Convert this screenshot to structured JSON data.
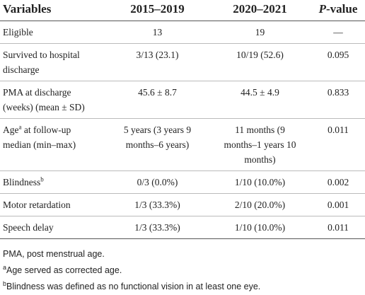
{
  "table": {
    "header": [
      "Variables",
      "2015–2019",
      "2020–2021",
      {
        "italic": "P",
        "text": "-value"
      }
    ],
    "rows": [
      {
        "label": [
          [
            "Eligible"
          ]
        ],
        "cells": [
          [
            "13"
          ],
          [
            "19"
          ],
          [
            "—"
          ]
        ]
      },
      {
        "label": [
          [
            "Survived to hospital"
          ],
          [
            "discharge"
          ]
        ],
        "cells": [
          [
            "3/13 (23.1)"
          ],
          [
            "10/19 (52.6)"
          ],
          [
            "0.095"
          ]
        ]
      },
      {
        "label": [
          [
            "PMA at discharge"
          ],
          [
            "(weeks) (mean ± SD)"
          ]
        ],
        "cells": [
          [
            "45.6 ± 8.7"
          ],
          [
            "44.5 ± 4.9"
          ],
          [
            "0.833"
          ]
        ]
      },
      {
        "label": [
          [
            "Age",
            {
              "sup": "a"
            },
            " at follow-up"
          ],
          [
            "median (min–max)"
          ]
        ],
        "cells": [
          [
            "5 years (3 years 9",
            "months–6 years)"
          ],
          [
            "11 months (9",
            "months–1 years 10",
            "months)"
          ],
          [
            "0.011"
          ]
        ]
      },
      {
        "label": [
          [
            "Blindness",
            {
              "sup": "b"
            }
          ]
        ],
        "cells": [
          [
            "0/3 (0.0%)"
          ],
          [
            "1/10 (10.0%)"
          ],
          [
            "0.002"
          ]
        ]
      },
      {
        "label": [
          [
            "Motor retardation"
          ]
        ],
        "cells": [
          [
            "1/3 (33.3%)"
          ],
          [
            "2/10 (20.0%)"
          ],
          [
            "0.001"
          ]
        ]
      },
      {
        "label": [
          [
            "Speech delay"
          ]
        ],
        "cells": [
          [
            "1/3 (33.3%)"
          ],
          [
            "1/10 (10.0%)"
          ],
          [
            "0.011"
          ]
        ]
      }
    ],
    "footnotes": [
      [
        "PMA, post menstrual age."
      ],
      [
        {
          "sup": "a"
        },
        "Age served as corrected age."
      ],
      [
        {
          "sup": "b"
        },
        "Blindness was defined as no functional vision in at least one eye."
      ]
    ]
  }
}
